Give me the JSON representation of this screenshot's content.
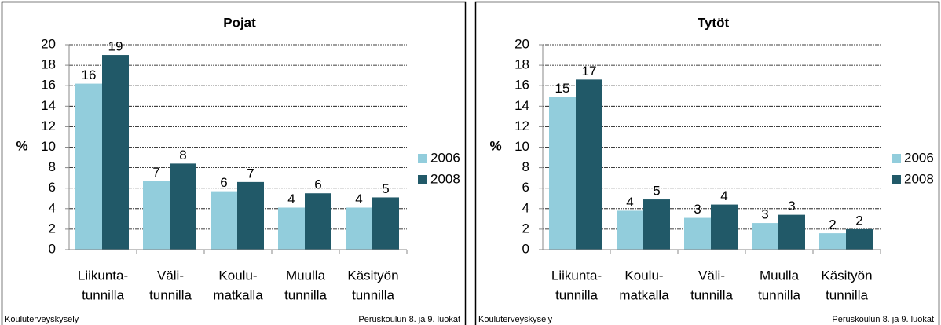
{
  "chart_data": [
    {
      "type": "bar",
      "title": "Pojat",
      "ylabel": "%",
      "categories": [
        [
          "Liikunta-",
          "tunnilla"
        ],
        [
          "Väli-",
          "tunnilla"
        ],
        [
          "Koulu-",
          "matkalla"
        ],
        [
          "Muulla",
          "tunnilla"
        ],
        [
          "Käsityön",
          "tunnilla"
        ]
      ],
      "series": [
        {
          "name": "2006",
          "color": "#92cddc",
          "values": [
            16.2,
            6.7,
            5.7,
            4.1,
            4.1
          ],
          "value_labels": [
            "16",
            "7",
            "6",
            "4",
            "4"
          ]
        },
        {
          "name": "2008",
          "color": "#215968",
          "values": [
            19.0,
            8.4,
            6.6,
            5.5,
            5.1
          ],
          "value_labels": [
            "19",
            "8",
            "7",
            "6",
            "5"
          ]
        }
      ],
      "ylim": [
        0,
        20
      ],
      "yticks": [
        0,
        2,
        4,
        6,
        8,
        10,
        12,
        14,
        16,
        18,
        20
      ],
      "grid": true,
      "legend": "right",
      "source": "Kouluterveyskysely",
      "note": "Peruskoulun 8. ja 9. luokat"
    },
    {
      "type": "bar",
      "title": "Tytöt",
      "ylabel": "%",
      "categories": [
        [
          "Liikunta-",
          "tunnilla"
        ],
        [
          "Koulu-",
          "matkalla"
        ],
        [
          "Väli-",
          "tunnilla"
        ],
        [
          "Muulla",
          "tunnilla"
        ],
        [
          "Käsityön",
          "tunnilla"
        ]
      ],
      "series": [
        {
          "name": "2006",
          "color": "#92cddc",
          "values": [
            14.9,
            3.8,
            3.1,
            2.6,
            1.6
          ],
          "value_labels": [
            "15",
            "4",
            "3",
            "3",
            "2"
          ]
        },
        {
          "name": "2008",
          "color": "#215968",
          "values": [
            16.6,
            4.9,
            4.4,
            3.4,
            2.0
          ],
          "value_labels": [
            "17",
            "5",
            "4",
            "3",
            "2"
          ]
        }
      ],
      "ylim": [
        0,
        20
      ],
      "yticks": [
        0,
        2,
        4,
        6,
        8,
        10,
        12,
        14,
        16,
        18,
        20
      ],
      "grid": true,
      "legend": "right",
      "source": "Kouluterveyskysely",
      "note": "Peruskoulun 8. ja 9. luokat"
    }
  ]
}
